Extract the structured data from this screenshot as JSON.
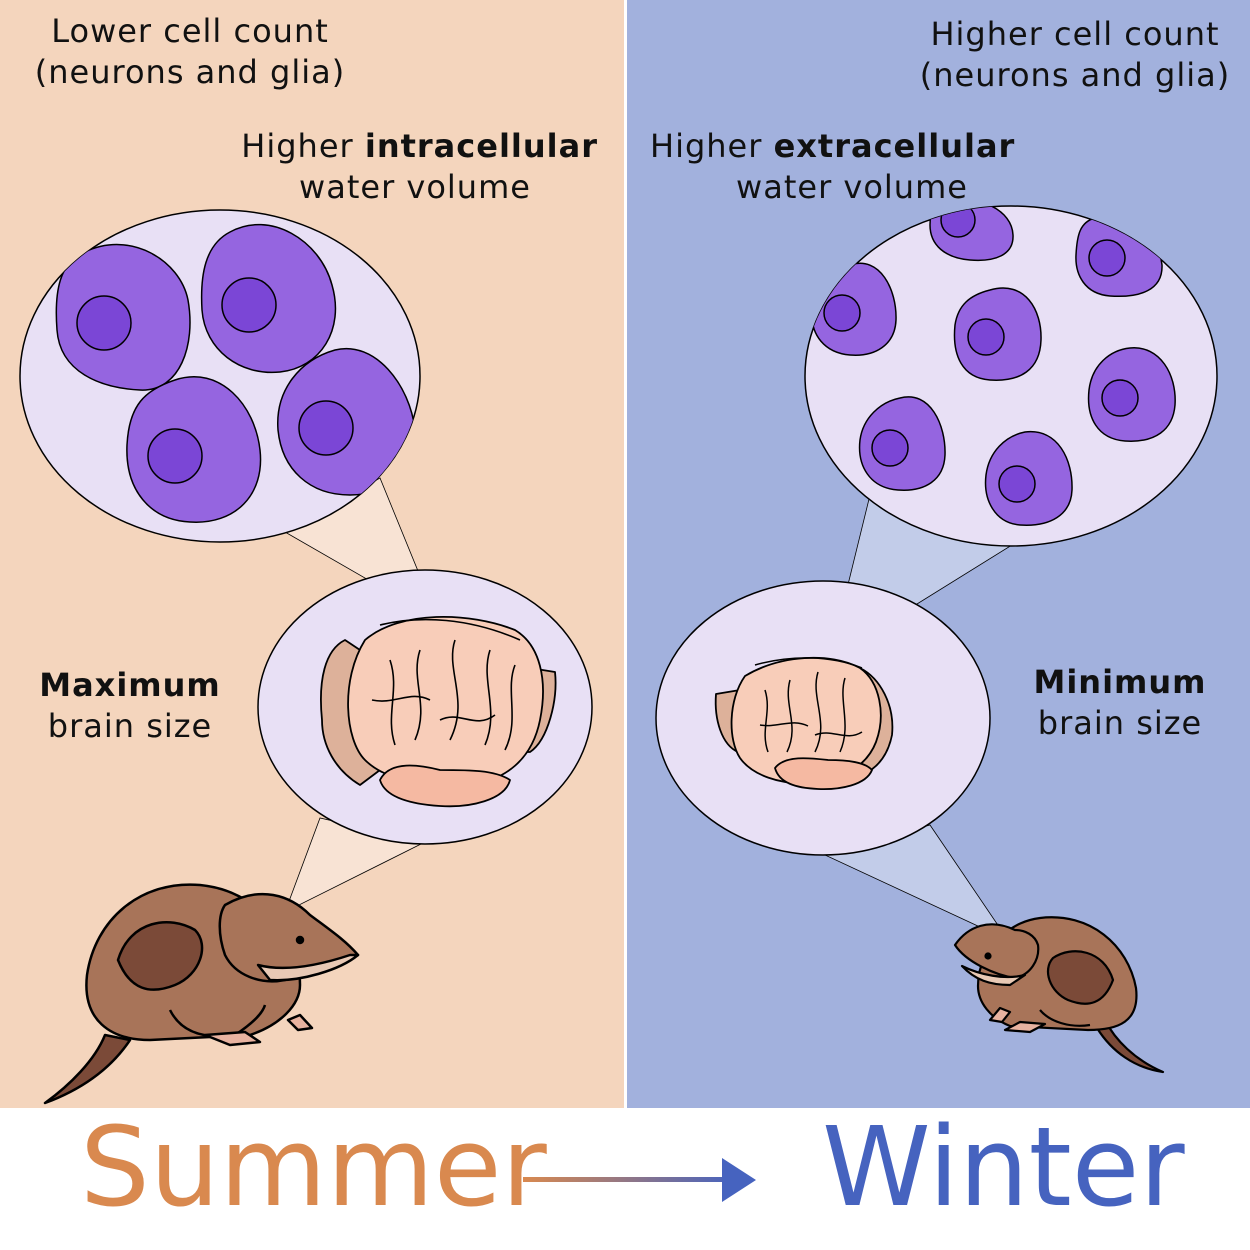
{
  "summer": {
    "cell_count_line1": "Lower cell count",
    "cell_count_line2": "(neurons and glia)",
    "water_prefix": "Higher ",
    "water_bold": "intracellular",
    "water_line2": "water volume",
    "brain_bold": "Maximum",
    "brain_line2": "brain size",
    "season_label": "Summer"
  },
  "winter": {
    "cell_count_line1": "Higher cell count",
    "cell_count_line2": "(neurons and glia)",
    "water_prefix": "Higher ",
    "water_bold": "extracellular",
    "water_line2": "water volume",
    "brain_bold": "Minimum",
    "brain_line2": "brain size",
    "season_label": "Winter"
  },
  "colors": {
    "summer_bg": "#f4d5bd",
    "winter_bg": "#a2b1dd",
    "summer_text": "#d9894f",
    "winter_text": "#4663bf",
    "bubble_fill": "#e8e0f5",
    "cell_fill": "#9565e0",
    "nucleus_fill": "#7b46d6",
    "shrew_body": "#a87459",
    "shrew_patch": "#7b4a38",
    "brain_fill": "#f8cdb9"
  }
}
